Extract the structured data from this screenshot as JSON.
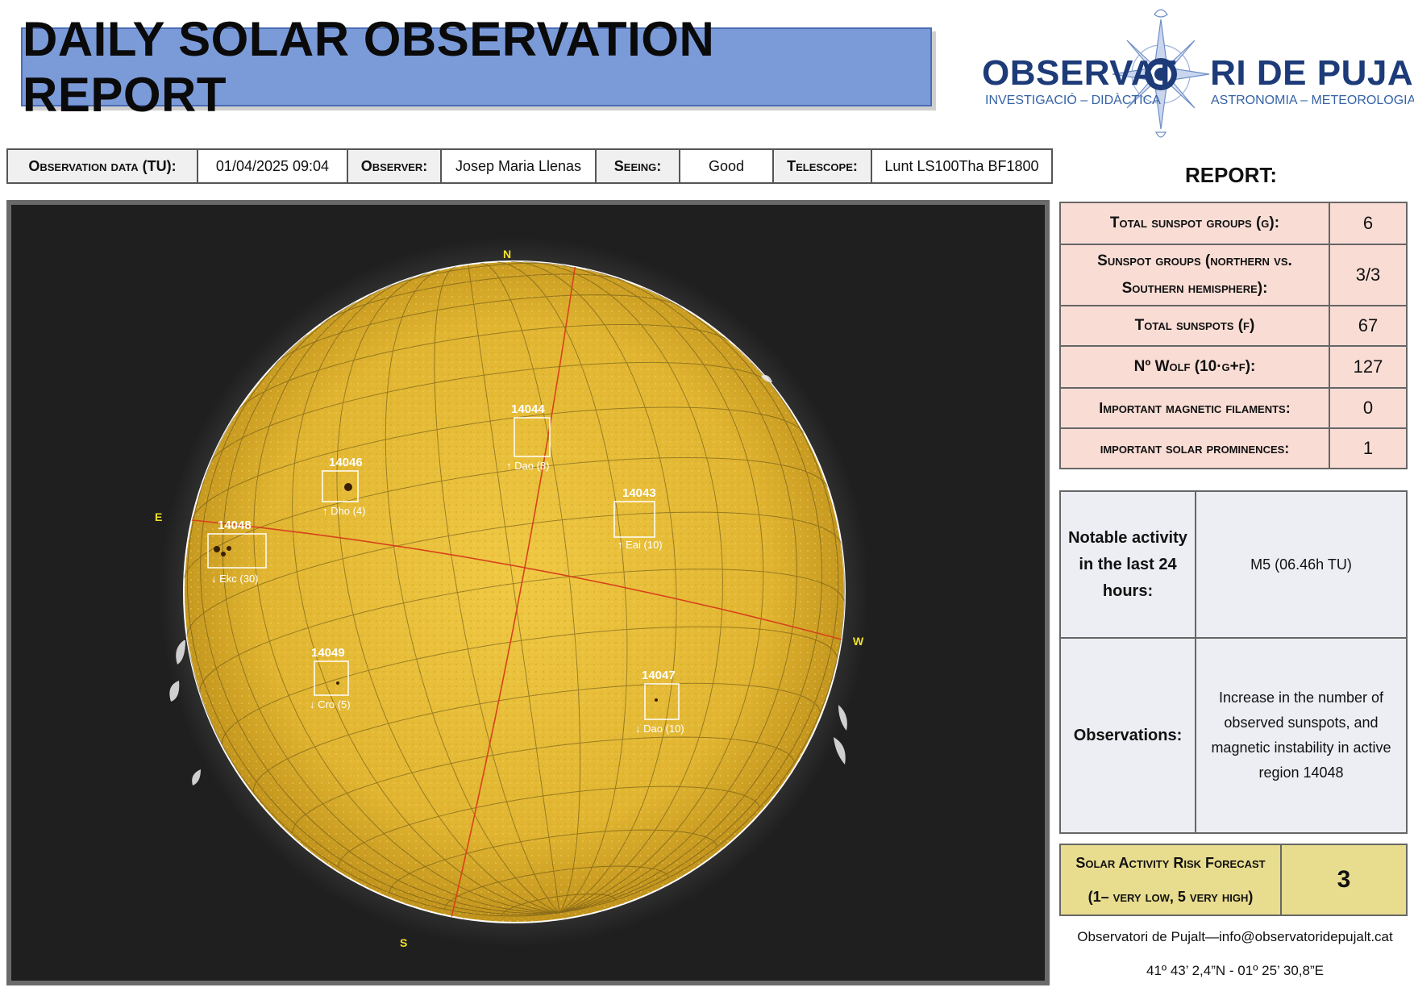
{
  "title": "DAILY SOLAR OBSERVATION REPORT",
  "logo": {
    "name_left": "OBSERVAT",
    "name_right": "RI DE PUJALT",
    "subtitle_left": "INVESTIGACIÓ – DIDÀCTICA",
    "subtitle_right": "ASTRONOMIA – METEOROLOGIA"
  },
  "info_bar": {
    "date_label": "Observation data (TU):",
    "date_value": "01/04/2025 09:04",
    "observer_label": "Observer:",
    "observer_value": "Josep Maria Llenas",
    "seeing_label": "Seeing:",
    "seeing_value": "Good",
    "telescope_label": "Telescope:",
    "telescope_value": "Lunt LS100Tha BF1800"
  },
  "solar_image": {
    "cardinals": {
      "n": "N",
      "s": "S",
      "e": "E",
      "w": "W"
    },
    "regions": [
      {
        "number": "14046",
        "label": "↑ Dho (4)"
      },
      {
        "number": "14044",
        "label": "↑ Dao (8)"
      },
      {
        "number": "14043",
        "label": "↑ Eai (10)"
      },
      {
        "number": "14048",
        "label": "↓ Ekc (30)"
      },
      {
        "number": "14049",
        "label": "↓ Cro (5)"
      },
      {
        "number": "14047",
        "label": "↓ Dao (10)"
      }
    ]
  },
  "report": {
    "header": "REPORT:",
    "rows": [
      {
        "label": "Total sunspot groups (g):",
        "value": "6"
      },
      {
        "label": "Sunspot groups (northern vs. Southern hemisphere):",
        "value": "3/3"
      },
      {
        "label": "Total sunspots (f)",
        "value": "67"
      },
      {
        "label": "Nº Wolf (10·g+f):",
        "value": "127"
      },
      {
        "label": "Important magnetic filaments:",
        "value": "0"
      },
      {
        "label": "important solar prominences:",
        "value": "1"
      }
    ]
  },
  "activity": {
    "label": "Notable activity in the last 24 hours:",
    "value": "M5 (06.46h TU)"
  },
  "observations": {
    "label": "Observations:",
    "value": "Increase in the number of observed sunspots, and magnetic instability in active region 14048"
  },
  "risk": {
    "label_line1": "Solar Activity Risk Forecast",
    "label_line2": "(1– very low, 5 very high)",
    "value": "3"
  },
  "footer": {
    "contact": "Observatori de Pujalt—info@observatoridepujalt.cat",
    "coordinates": "41º 43’ 2,4”N - 01º 25’ 30,8”E"
  },
  "colors": {
    "banner": "#7b9ad8",
    "report_rows": "#f9ddd5",
    "observations": "#eceef3",
    "risk": "#e8dc8e",
    "sun": "#e1b531",
    "logo": "#1d3b78"
  }
}
